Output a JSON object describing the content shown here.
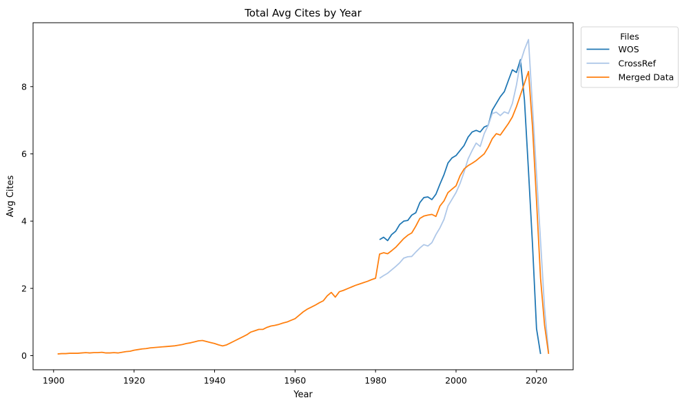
{
  "chart_data": {
    "type": "line",
    "title": "Total Avg Cites by Year",
    "xlabel": "Year",
    "ylabel": "Avg Cites",
    "xlim": [
      1894.9,
      2029.1
    ],
    "ylim": [
      -0.42,
      9.9
    ],
    "x_ticks": [
      1900,
      1920,
      1940,
      1960,
      1980,
      2000,
      2020
    ],
    "x_tick_labels": [
      "1900",
      "1920",
      "1940",
      "1960",
      "1980",
      "2000",
      "2020"
    ],
    "y_ticks": [
      0,
      2,
      4,
      6,
      8
    ],
    "y_tick_labels": [
      "0",
      "2",
      "4",
      "6",
      "8"
    ],
    "grid": false,
    "legend": {
      "title": "Files",
      "position": "upper-right-outside"
    },
    "series": [
      {
        "name": "WOS",
        "color": "#1f77b4",
        "points": [
          [
            1981,
            3.45
          ],
          [
            1982,
            3.52
          ],
          [
            1983,
            3.42
          ],
          [
            1984,
            3.6
          ],
          [
            1985,
            3.7
          ],
          [
            1986,
            3.9
          ],
          [
            1987,
            4.0
          ],
          [
            1988,
            4.02
          ],
          [
            1989,
            4.18
          ],
          [
            1990,
            4.25
          ],
          [
            1991,
            4.55
          ],
          [
            1992,
            4.7
          ],
          [
            1993,
            4.72
          ],
          [
            1994,
            4.64
          ],
          [
            1995,
            4.8
          ],
          [
            1996,
            5.1
          ],
          [
            1997,
            5.38
          ],
          [
            1998,
            5.73
          ],
          [
            1999,
            5.88
          ],
          [
            2000,
            5.95
          ],
          [
            2001,
            6.1
          ],
          [
            2002,
            6.25
          ],
          [
            2003,
            6.5
          ],
          [
            2004,
            6.65
          ],
          [
            2005,
            6.7
          ],
          [
            2006,
            6.65
          ],
          [
            2007,
            6.8
          ],
          [
            2008,
            6.85
          ],
          [
            2009,
            7.3
          ],
          [
            2010,
            7.5
          ],
          [
            2011,
            7.7
          ],
          [
            2012,
            7.85
          ],
          [
            2013,
            8.18
          ],
          [
            2014,
            8.5
          ],
          [
            2015,
            8.42
          ],
          [
            2016,
            8.8
          ],
          [
            2017,
            7.6
          ],
          [
            2018,
            5.5
          ],
          [
            2019,
            3.3
          ],
          [
            2020,
            0.8
          ],
          [
            2021,
            0.05
          ]
        ]
      },
      {
        "name": "CrossRef",
        "color": "#aec7e8",
        "points": [
          [
            1981,
            2.3
          ],
          [
            1982,
            2.38
          ],
          [
            1983,
            2.45
          ],
          [
            1984,
            2.55
          ],
          [
            1985,
            2.65
          ],
          [
            1986,
            2.76
          ],
          [
            1987,
            2.9
          ],
          [
            1988,
            2.94
          ],
          [
            1989,
            2.95
          ],
          [
            1990,
            3.08
          ],
          [
            1991,
            3.2
          ],
          [
            1992,
            3.3
          ],
          [
            1993,
            3.26
          ],
          [
            1994,
            3.36
          ],
          [
            1995,
            3.6
          ],
          [
            1996,
            3.8
          ],
          [
            1997,
            4.05
          ],
          [
            1998,
            4.45
          ],
          [
            1999,
            4.65
          ],
          [
            2000,
            4.85
          ],
          [
            2001,
            5.12
          ],
          [
            2002,
            5.46
          ],
          [
            2003,
            5.85
          ],
          [
            2004,
            6.1
          ],
          [
            2005,
            6.32
          ],
          [
            2006,
            6.22
          ],
          [
            2007,
            6.6
          ],
          [
            2008,
            6.85
          ],
          [
            2009,
            7.2
          ],
          [
            2010,
            7.24
          ],
          [
            2011,
            7.14
          ],
          [
            2012,
            7.25
          ],
          [
            2013,
            7.2
          ],
          [
            2014,
            7.5
          ],
          [
            2015,
            8.04
          ],
          [
            2016,
            8.72
          ],
          [
            2017,
            9.1
          ],
          [
            2018,
            9.4
          ],
          [
            2019,
            7.4
          ],
          [
            2020,
            5.4
          ],
          [
            2021,
            3.4
          ],
          [
            2022,
            1.4
          ],
          [
            2023,
            0.1
          ]
        ]
      },
      {
        "name": "Merged Data",
        "color": "#ff7f0e",
        "points": [
          [
            1901,
            0.05
          ],
          [
            1902,
            0.06
          ],
          [
            1903,
            0.06
          ],
          [
            1904,
            0.07
          ],
          [
            1905,
            0.07
          ],
          [
            1906,
            0.07
          ],
          [
            1907,
            0.08
          ],
          [
            1908,
            0.09
          ],
          [
            1909,
            0.08
          ],
          [
            1910,
            0.09
          ],
          [
            1911,
            0.09
          ],
          [
            1912,
            0.1
          ],
          [
            1913,
            0.08
          ],
          [
            1914,
            0.08
          ],
          [
            1915,
            0.09
          ],
          [
            1916,
            0.08
          ],
          [
            1917,
            0.1
          ],
          [
            1918,
            0.12
          ],
          [
            1919,
            0.13
          ],
          [
            1920,
            0.16
          ],
          [
            1921,
            0.18
          ],
          [
            1922,
            0.2
          ],
          [
            1923,
            0.21
          ],
          [
            1924,
            0.23
          ],
          [
            1925,
            0.24
          ],
          [
            1926,
            0.25
          ],
          [
            1927,
            0.26
          ],
          [
            1928,
            0.27
          ],
          [
            1929,
            0.28
          ],
          [
            1930,
            0.29
          ],
          [
            1931,
            0.31
          ],
          [
            1932,
            0.33
          ],
          [
            1933,
            0.36
          ],
          [
            1934,
            0.38
          ],
          [
            1935,
            0.41
          ],
          [
            1936,
            0.44
          ],
          [
            1937,
            0.45
          ],
          [
            1938,
            0.42
          ],
          [
            1939,
            0.39
          ],
          [
            1940,
            0.36
          ],
          [
            1941,
            0.32
          ],
          [
            1942,
            0.29
          ],
          [
            1943,
            0.32
          ],
          [
            1944,
            0.38
          ],
          [
            1945,
            0.44
          ],
          [
            1946,
            0.5
          ],
          [
            1947,
            0.56
          ],
          [
            1948,
            0.62
          ],
          [
            1949,
            0.7
          ],
          [
            1950,
            0.74
          ],
          [
            1951,
            0.78
          ],
          [
            1952,
            0.78
          ],
          [
            1953,
            0.84
          ],
          [
            1954,
            0.88
          ],
          [
            1955,
            0.9
          ],
          [
            1956,
            0.93
          ],
          [
            1957,
            0.97
          ],
          [
            1958,
            1.0
          ],
          [
            1959,
            1.05
          ],
          [
            1960,
            1.1
          ],
          [
            1961,
            1.2
          ],
          [
            1962,
            1.3
          ],
          [
            1963,
            1.38
          ],
          [
            1964,
            1.44
          ],
          [
            1965,
            1.5
          ],
          [
            1966,
            1.57
          ],
          [
            1967,
            1.63
          ],
          [
            1968,
            1.78
          ],
          [
            1969,
            1.88
          ],
          [
            1970,
            1.74
          ],
          [
            1971,
            1.9
          ],
          [
            1972,
            1.94
          ],
          [
            1973,
            1.99
          ],
          [
            1974,
            2.04
          ],
          [
            1975,
            2.09
          ],
          [
            1976,
            2.13
          ],
          [
            1977,
            2.17
          ],
          [
            1978,
            2.21
          ],
          [
            1979,
            2.26
          ],
          [
            1980,
            2.3
          ],
          [
            1981,
            3.02
          ],
          [
            1982,
            3.06
          ],
          [
            1983,
            3.03
          ],
          [
            1984,
            3.12
          ],
          [
            1985,
            3.22
          ],
          [
            1986,
            3.35
          ],
          [
            1987,
            3.48
          ],
          [
            1988,
            3.58
          ],
          [
            1989,
            3.65
          ],
          [
            1990,
            3.85
          ],
          [
            1991,
            4.08
          ],
          [
            1992,
            4.15
          ],
          [
            1993,
            4.18
          ],
          [
            1994,
            4.2
          ],
          [
            1995,
            4.14
          ],
          [
            1996,
            4.45
          ],
          [
            1997,
            4.6
          ],
          [
            1998,
            4.85
          ],
          [
            1999,
            4.95
          ],
          [
            2000,
            5.05
          ],
          [
            2001,
            5.35
          ],
          [
            2002,
            5.55
          ],
          [
            2003,
            5.65
          ],
          [
            2004,
            5.72
          ],
          [
            2005,
            5.8
          ],
          [
            2006,
            5.9
          ],
          [
            2007,
            6.0
          ],
          [
            2008,
            6.2
          ],
          [
            2009,
            6.45
          ],
          [
            2010,
            6.6
          ],
          [
            2011,
            6.56
          ],
          [
            2012,
            6.73
          ],
          [
            2013,
            6.9
          ],
          [
            2014,
            7.1
          ],
          [
            2015,
            7.4
          ],
          [
            2016,
            7.75
          ],
          [
            2017,
            8.1
          ],
          [
            2018,
            8.45
          ],
          [
            2019,
            6.8
          ],
          [
            2020,
            4.6
          ],
          [
            2021,
            2.3
          ],
          [
            2022,
            0.9
          ],
          [
            2023,
            0.05
          ]
        ]
      }
    ]
  }
}
